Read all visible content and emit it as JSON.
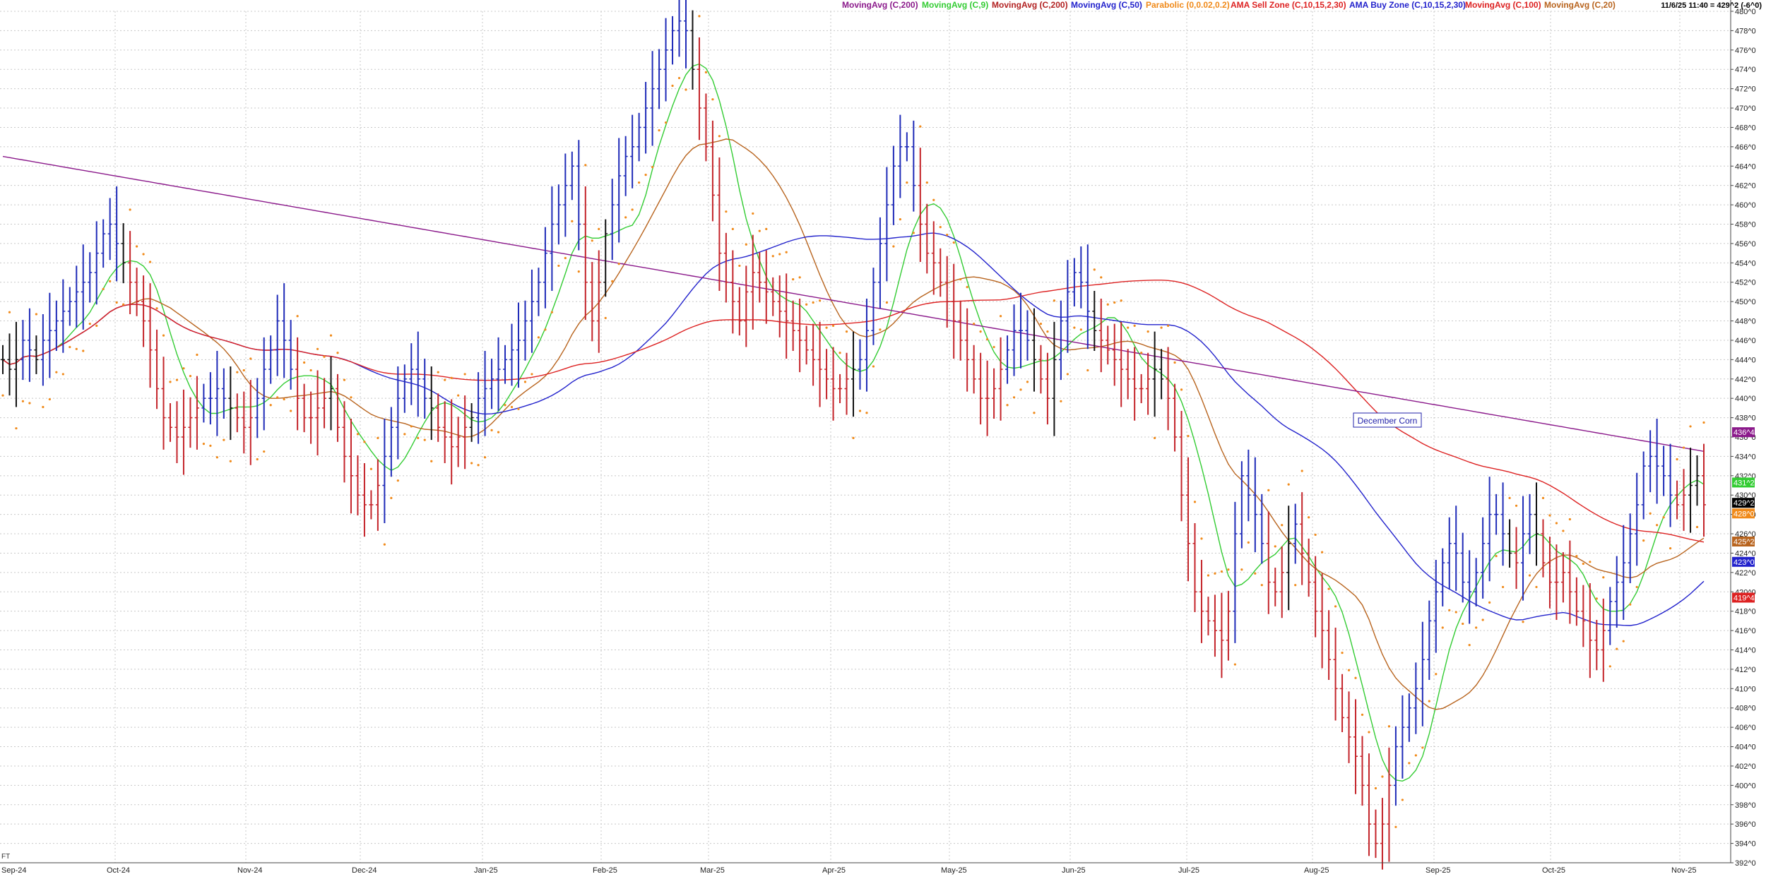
{
  "chart_data": {
    "type": "ohlc",
    "title": "December Corn",
    "status": "11/6/25 11:40 = 429^2 (-6^0)",
    "corner_label": "FT",
    "legend": [
      {
        "label": "MovingAvg (C,200)",
        "color": "#8b1a8b"
      },
      {
        "label": "MovingAvg (C,9)",
        "color": "#33cc33"
      },
      {
        "label": "MovingAvg (C,200)",
        "color": "#b22222"
      },
      {
        "label": "MovingAvg (C,50)",
        "color": "#2222cc"
      },
      {
        "label": "Parabolic (0,0.02,0.2)",
        "color": "#f08a1a"
      },
      {
        "label": "AMA Sell Zone (C,10,15,2,30)",
        "color": "#dd2222"
      },
      {
        "label": "AMA Buy Zone (C,10,15,2,30)",
        "color": "#2222cc"
      },
      {
        "label": "MovingAvg (C,100)",
        "color": "#dd2222"
      },
      {
        "label": "MovingAvg (C,20)",
        "color": "#b8641e"
      }
    ],
    "ylim": [
      392,
      480
    ],
    "y_ticks": [
      "392^0",
      "394^0",
      "396^0",
      "398^0",
      "400^0",
      "402^0",
      "404^0",
      "406^0",
      "408^0",
      "410^0",
      "412^0",
      "414^0",
      "416^0",
      "418^0",
      "420^0",
      "422^0",
      "424^0",
      "426^0",
      "428^0",
      "430^0",
      "432^0",
      "434^0",
      "436^0",
      "438^0",
      "440^0",
      "442^0",
      "444^0",
      "446^0",
      "448^0",
      "450^0",
      "452^0",
      "454^0",
      "456^0",
      "458^0",
      "460^0",
      "462^0",
      "464^0",
      "466^0",
      "468^0",
      "470^0",
      "472^0",
      "474^0",
      "476^0",
      "478^0",
      "480^0"
    ],
    "x_labels": [
      "Sep-24",
      "Oct-24",
      "Nov-24",
      "Dec-24",
      "Jan-25",
      "Feb-25",
      "Mar-25",
      "Apr-25",
      "May-25",
      "Jun-25",
      "Jul-25",
      "Aug-25",
      "Sep-25",
      "Oct-25",
      "Nov-25"
    ],
    "colors": {
      "up": "#1f2bb8",
      "down": "#c4242a",
      "neutral": "#111111",
      "sar": "#f08a1a"
    },
    "closes": [
      444,
      443,
      444,
      446,
      445,
      444,
      446,
      447,
      448,
      449,
      450,
      451,
      452,
      453,
      455,
      457,
      458,
      456,
      454,
      452,
      450,
      448,
      445,
      441,
      438,
      437,
      436,
      437,
      438,
      439,
      440,
      440,
      441,
      440,
      439,
      438,
      437,
      438,
      440,
      443,
      445,
      448,
      446,
      443,
      440,
      438,
      438,
      439,
      440,
      441,
      437,
      434,
      432,
      430,
      429,
      429,
      431,
      434,
      437,
      440,
      442,
      443,
      442,
      440,
      439,
      437,
      436,
      435,
      436,
      437,
      438,
      440,
      441,
      442,
      443,
      444,
      445,
      446,
      448,
      450,
      452,
      455,
      458,
      460,
      462,
      464,
      458,
      452,
      448,
      452,
      457,
      460,
      463,
      465,
      466,
      468,
      470,
      472,
      474,
      476,
      478,
      479,
      478,
      474,
      470,
      466,
      461,
      455,
      452,
      450,
      448,
      451,
      453,
      452,
      451,
      450,
      449,
      448,
      447,
      446,
      445,
      444,
      443,
      442,
      441,
      441,
      442,
      443,
      444,
      447,
      452,
      456,
      460,
      464,
      466,
      466,
      462,
      458,
      455,
      454,
      452,
      450,
      448,
      446,
      444,
      442,
      440,
      440,
      441,
      443,
      445,
      447,
      447,
      446,
      444,
      442,
      440,
      444,
      448,
      451,
      453,
      452,
      449,
      447,
      446,
      445,
      444,
      443,
      442,
      441,
      441,
      442,
      443,
      442,
      440,
      436,
      430,
      425,
      420,
      418,
      417,
      416,
      415,
      418,
      426,
      432,
      430,
      428,
      425,
      421,
      420,
      422,
      425,
      427,
      424,
      421,
      418,
      416,
      413,
      410,
      407,
      405,
      403,
      400,
      396,
      394,
      396,
      400,
      404,
      406,
      408,
      410,
      413,
      417,
      420,
      423,
      425,
      424,
      421,
      420,
      422,
      425,
      428,
      428,
      426,
      424,
      423,
      426,
      428,
      426,
      423,
      421,
      421,
      422,
      420,
      418,
      417,
      415,
      414,
      416,
      419,
      421,
      423,
      426,
      429,
      433,
      434,
      433,
      432,
      430,
      429,
      430,
      431,
      432,
      429
    ],
    "y_axis_badges": [
      {
        "value": 436.5,
        "label": "436^4",
        "color": "#8b1a8b"
      },
      {
        "value": 431.3,
        "label": "431^2",
        "color": "#33cc33"
      },
      {
        "value": 429.2,
        "label": "429^2",
        "color": "#000000"
      },
      {
        "value": 428.1,
        "label": "428^0",
        "color": "#f08a1a"
      },
      {
        "value": 425.2,
        "label": "425^2",
        "color": "#b8641e"
      },
      {
        "value": 423.1,
        "label": "423^0",
        "color": "#2222cc"
      },
      {
        "value": 419.4,
        "label": "419^4",
        "color": "#dd2222"
      }
    ],
    "grid": true
  }
}
